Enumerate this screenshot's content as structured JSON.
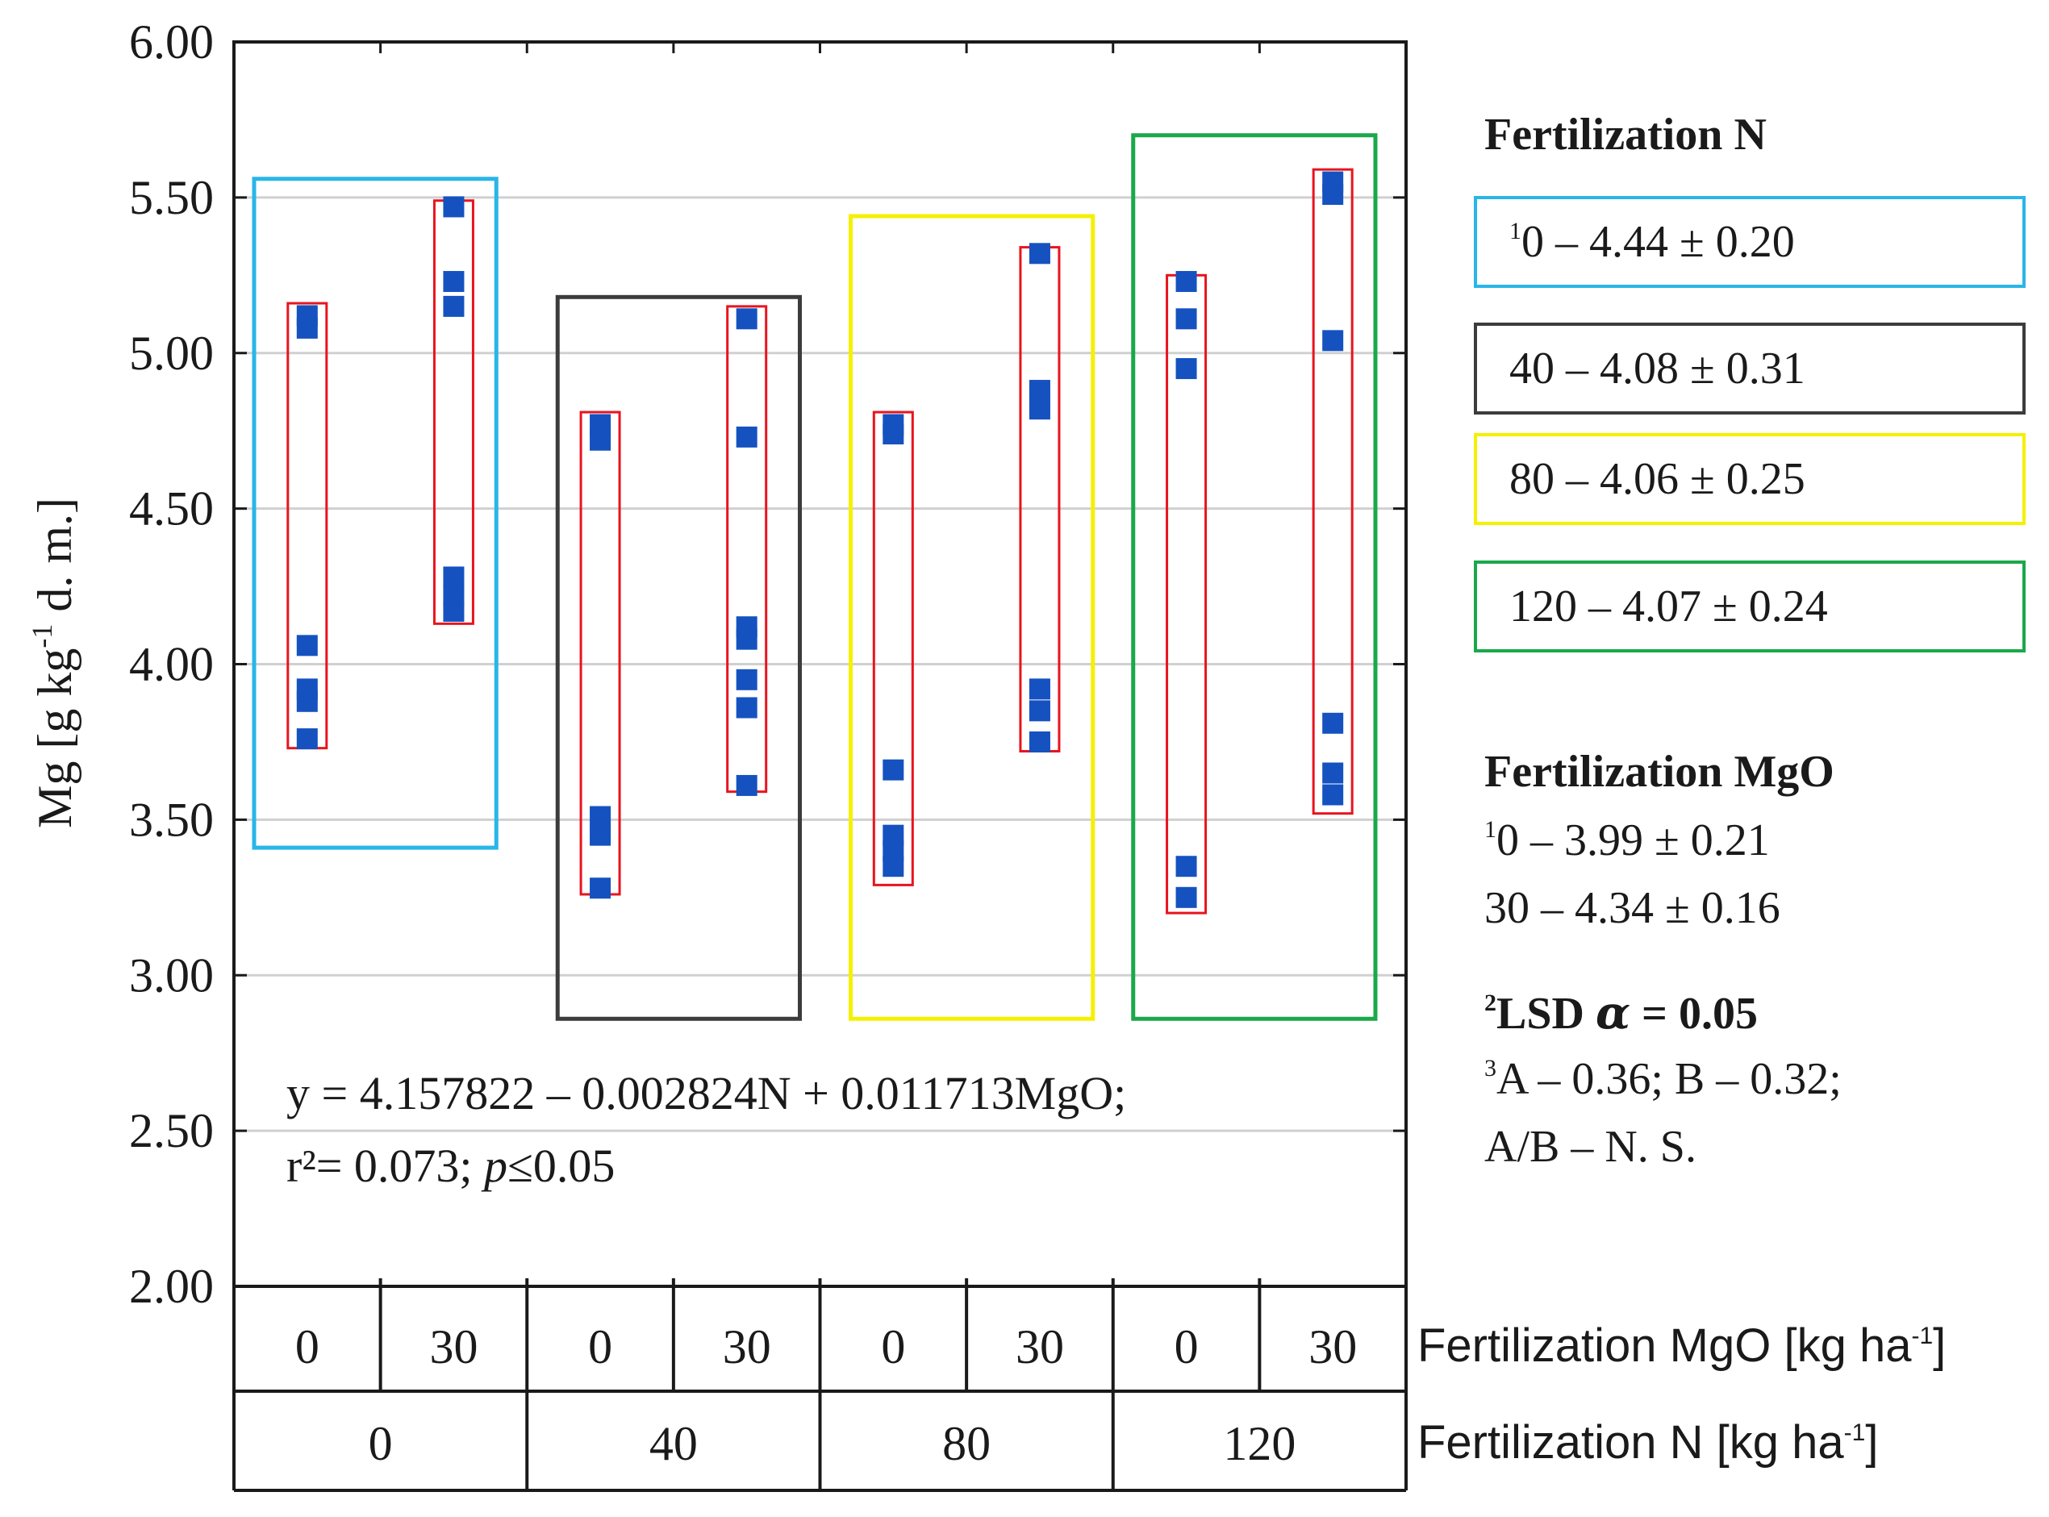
{
  "chart_data": {
    "type": "scatter",
    "ylabel": "Mg [g kg-1 d. m.]",
    "ylim": [
      2.0,
      6.0
    ],
    "yticks": [
      2.0,
      2.5,
      3.0,
      3.5,
      4.0,
      4.5,
      5.0,
      5.5,
      6.0
    ],
    "ytick_labels": [
      "2.00",
      "2.50",
      "3.00",
      "3.50",
      "4.00",
      "4.50",
      "5.00",
      "5.50",
      "6.00"
    ],
    "grid": true,
    "x_axis": {
      "mgo_label": "Fertilization MgO [kg ha-1]",
      "n_label": "Fertilization N [kg ha-1]",
      "mgo_categories": [
        "0",
        "30",
        "0",
        "30",
        "0",
        "30",
        "0",
        "30"
      ],
      "n_categories": [
        "0",
        "40",
        "80",
        "120"
      ]
    },
    "groups": [
      {
        "n": "0",
        "color": "#29b6e8",
        "box_range": [
          3.41,
          5.56
        ]
      },
      {
        "n": "40",
        "color": "#3c3c3c",
        "box_range": [
          2.86,
          5.18
        ]
      },
      {
        "n": "80",
        "color": "#f5f000",
        "box_range": [
          2.86,
          5.44
        ]
      },
      {
        "n": "120",
        "color": "#1aa84a",
        "box_range": [
          2.86,
          5.7
        ]
      }
    ],
    "series": [
      {
        "n": "0",
        "mgo": "0",
        "range": [
          3.73,
          5.16
        ],
        "points": [
          5.12,
          5.08,
          4.06,
          3.92,
          3.88,
          3.76
        ]
      },
      {
        "n": "0",
        "mgo": "30",
        "range": [
          4.13,
          5.49
        ],
        "points": [
          5.47,
          5.23,
          5.15,
          4.28,
          4.22,
          4.17
        ]
      },
      {
        "n": "40",
        "mgo": "0",
        "range": [
          3.26,
          4.81
        ],
        "points": [
          4.77,
          4.72,
          3.51,
          3.45,
          3.28
        ]
      },
      {
        "n": "40",
        "mgo": "30",
        "range": [
          3.59,
          5.15
        ],
        "points": [
          5.11,
          4.73,
          4.12,
          4.08,
          3.95,
          3.86,
          3.61
        ]
      },
      {
        "n": "80",
        "mgo": "0",
        "range": [
          3.29,
          4.81
        ],
        "points": [
          4.77,
          4.74,
          3.66,
          3.45,
          3.4,
          3.35
        ]
      },
      {
        "n": "80",
        "mgo": "30",
        "range": [
          3.72,
          5.34
        ],
        "points": [
          5.32,
          4.88,
          4.82,
          3.92,
          3.85,
          3.75
        ]
      },
      {
        "n": "120",
        "mgo": "0",
        "range": [
          3.2,
          5.25
        ],
        "points": [
          5.23,
          5.11,
          4.95,
          3.35,
          3.25
        ]
      },
      {
        "n": "120",
        "mgo": "30",
        "range": [
          3.52,
          5.59
        ],
        "points": [
          5.55,
          5.51,
          5.04,
          3.81,
          3.65,
          3.58
        ]
      }
    ]
  },
  "equation": {
    "line1": "y = 4.157822 – 0.002824N + 0.011713MgO;",
    "line2_prefix": "r²= 0.073; ",
    "line2_p": "p",
    "line2_suffix": "≤0.05"
  },
  "legend": {
    "n_title": "Fertilization N",
    "n_items": [
      {
        "sup": "1",
        "text": "0 – 4.44 ± 0.20",
        "color": "#29b6e8"
      },
      {
        "sup": "",
        "text": "40 – 4.08 ± 0.31",
        "color": "#3c3c3c"
      },
      {
        "sup": "",
        "text": "80 – 4.06 ± 0.25",
        "color": "#f5f000"
      },
      {
        "sup": "",
        "text": "120 – 4.07 ± 0.24",
        "color": "#1aa84a"
      }
    ],
    "mgo_title": "Fertilization MgO",
    "mgo_line1_sup": "1",
    "mgo_line1": "0 – 3.99 ± 0.21",
    "mgo_line2": "30 – 4.34 ± 0.16",
    "lsd_sup": "2",
    "lsd_text": "LSD ",
    "lsd_alpha": "α",
    "lsd_value": " = 0.05",
    "lsd_line1_sup": "3",
    "lsd_line1": "A – 0.36; B – 0.32;",
    "lsd_line2": "A/B – N. S."
  },
  "colors": {
    "range_box": "#e8141e",
    "point": "#1552c0",
    "grid": "#d0d0d0"
  }
}
